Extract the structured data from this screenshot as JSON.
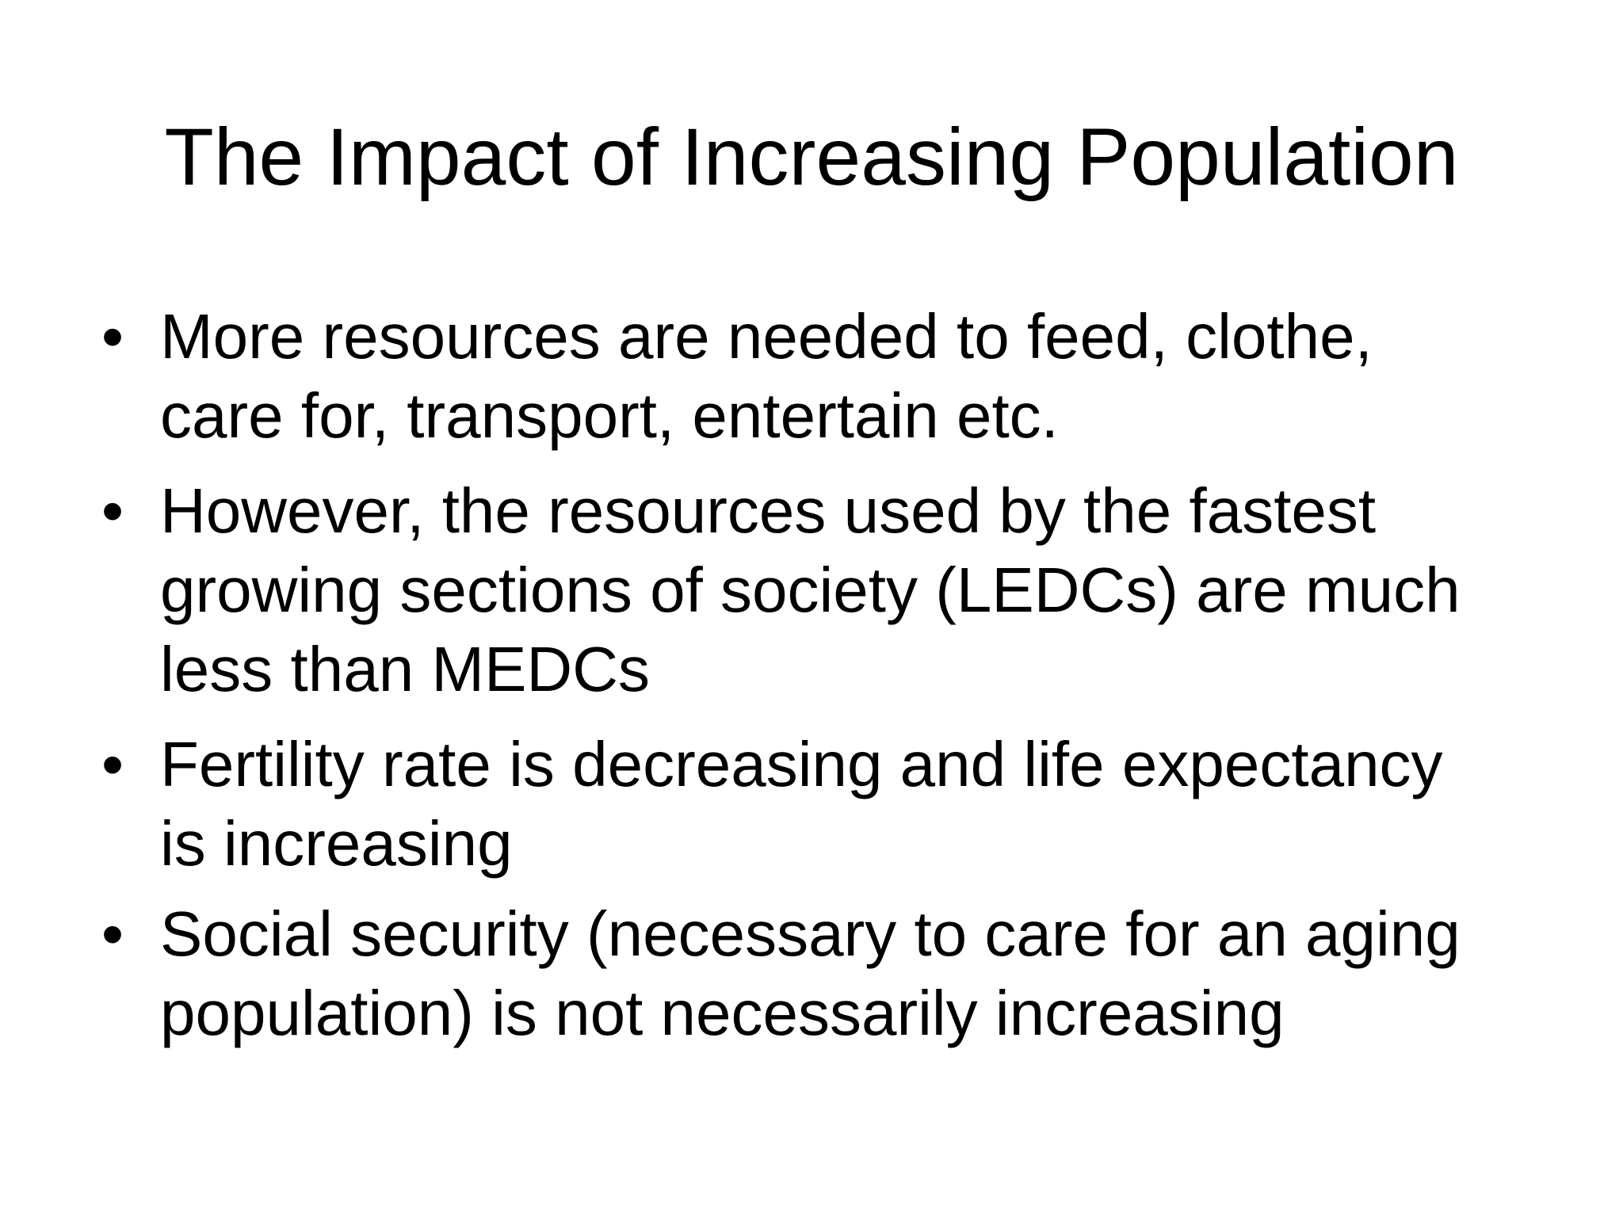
{
  "slide": {
    "title": "The Impact of Increasing Population",
    "bullets": [
      {
        "line1": "More resources are needed to feed, clothe,",
        "line2": "care for, transport, entertain etc.",
        "line3": ""
      },
      {
        "line1": "However, the resources used by the fastest",
        "line2": "growing sections of society (LEDCs) are much",
        "line3": "less than MEDCs"
      },
      {
        "line1": "Fertility rate is decreasing and life expectancy",
        "line2": "is increasing",
        "line3": ""
      },
      {
        "line1": "Social security (necessary to care for an aging",
        "line2": "population) is not necessarily increasing",
        "line3": ""
      }
    ],
    "bullet_symbol": "•",
    "background_color": "#ffffff",
    "text_color": "#000000"
  }
}
